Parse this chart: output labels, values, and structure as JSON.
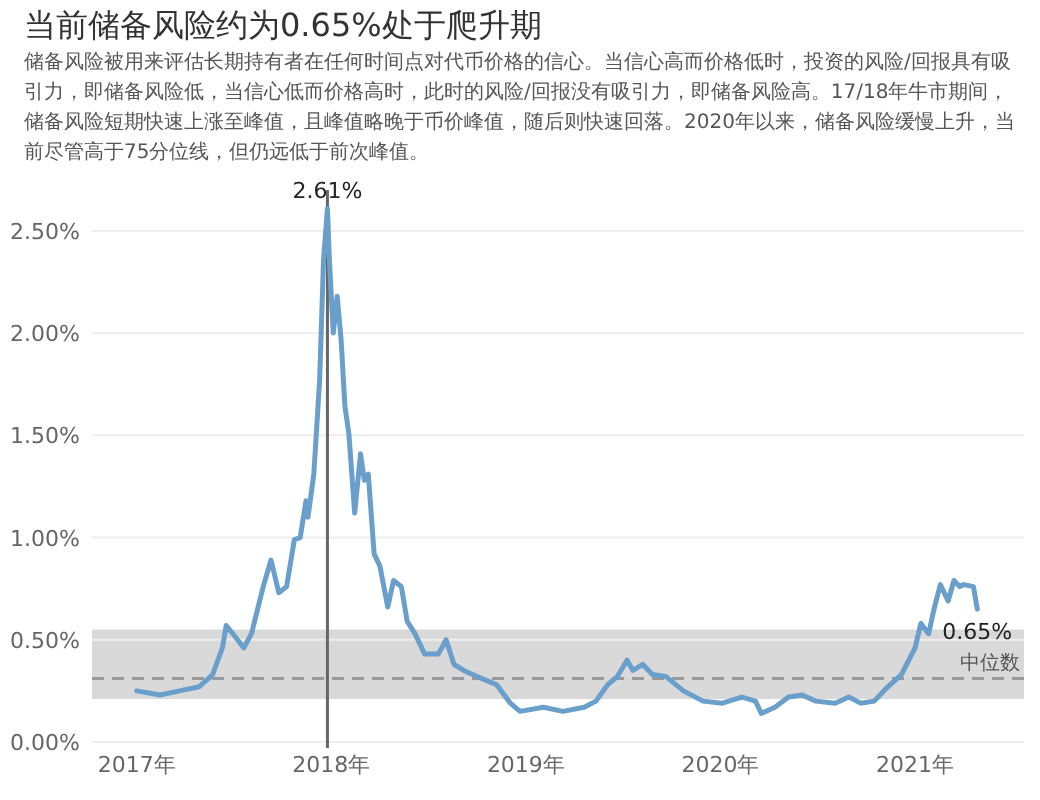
{
  "chart_data": {
    "type": "line",
    "title": "当前储备风险约为0.65%处于爬升期",
    "subtitle": "储备风险被用来评估长期持有者在任何时间点对代币价格的信心。当信心高而价格低时，投资的风险/回报具有吸引力，即储备风险低，当信心低而价格高时，此时的风险/回报没有吸引力，即储备风险高。17/18年牛市期间，储备风险短期快速上涨至峰值，且峰值略晚于币价峰值，随后则快速回落。2020年以来，储备风险缓慢上升，当前尽管高于75分位线，但仍远低于前次峰值。",
    "series": [
      {
        "color": "#6a9fcc",
        "x": [
          2017.0,
          2017.12,
          2017.22,
          2017.32,
          2017.39,
          2017.44,
          2017.46,
          2017.51,
          2017.55,
          2017.59,
          2017.65,
          2017.69,
          2017.73,
          2017.77,
          2017.81,
          2017.84,
          2017.87,
          2017.88,
          2017.91,
          2017.94,
          2017.96,
          2017.98,
          2017.99,
          2018.01,
          2018.03,
          2018.05,
          2018.07,
          2018.09,
          2018.12,
          2018.15,
          2018.17,
          2018.19,
          2018.22,
          2018.25,
          2018.29,
          2018.32,
          2018.36,
          2018.39,
          2018.43,
          2018.48,
          2018.55,
          2018.59,
          2018.63,
          2018.68,
          2018.75,
          2018.85,
          2018.92,
          2018.97,
          2019.09,
          2019.19,
          2019.3,
          2019.36,
          2019.42,
          2019.47,
          2019.52,
          2019.55,
          2019.6,
          2019.65,
          2019.72,
          2019.81,
          2019.91,
          2020.01,
          2020.11,
          2020.18,
          2020.21,
          2020.28,
          2020.35,
          2020.42,
          2020.49,
          2020.59,
          2020.66,
          2020.72,
          2020.79,
          2020.86,
          2020.93,
          2021.0,
          2021.03,
          2021.07,
          2021.1,
          2021.13,
          2021.17,
          2021.2,
          2021.23,
          2021.25,
          2021.3,
          2021.32
        ],
        "values": [
          0.25,
          0.23,
          0.25,
          0.27,
          0.33,
          0.46,
          0.57,
          0.51,
          0.46,
          0.53,
          0.76,
          0.89,
          0.73,
          0.76,
          0.99,
          1.0,
          1.18,
          1.1,
          1.31,
          1.77,
          2.36,
          2.61,
          2.36,
          2.0,
          2.18,
          1.97,
          1.64,
          1.51,
          1.12,
          1.41,
          1.28,
          1.31,
          0.92,
          0.86,
          0.66,
          0.79,
          0.76,
          0.59,
          0.53,
          0.43,
          0.43,
          0.5,
          0.38,
          0.35,
          0.32,
          0.28,
          0.19,
          0.15,
          0.17,
          0.15,
          0.17,
          0.2,
          0.28,
          0.32,
          0.4,
          0.35,
          0.38,
          0.33,
          0.32,
          0.25,
          0.2,
          0.19,
          0.22,
          0.2,
          0.14,
          0.17,
          0.22,
          0.23,
          0.2,
          0.19,
          0.22,
          0.19,
          0.2,
          0.27,
          0.33,
          0.46,
          0.58,
          0.53,
          0.66,
          0.77,
          0.69,
          0.79,
          0.76,
          0.77,
          0.76,
          0.65
        ]
      }
    ],
    "xlim": [
      2016.77,
      2021.56
    ],
    "xticks": [
      {
        "value": 2017,
        "label": "2017年"
      },
      {
        "value": 2018,
        "label": "2018年"
      },
      {
        "value": 2019,
        "label": "2019年"
      },
      {
        "value": 2020,
        "label": "2020年"
      },
      {
        "value": 2021,
        "label": "2021年"
      }
    ],
    "ylim": [
      0,
      2.7
    ],
    "yticks": [
      {
        "value": 0,
        "label": "0.00%"
      },
      {
        "value": 0.5,
        "label": "0.50%"
      },
      {
        "value": 1,
        "label": "1.00%"
      },
      {
        "value": 1.5,
        "label": "1.50%"
      },
      {
        "value": 2,
        "label": "2.00%"
      },
      {
        "value": 2.5,
        "label": "2.50%"
      }
    ],
    "grid": "y",
    "line_style": "solid",
    "bands": [
      {
        "axis": "y",
        "from": 0.21,
        "to": 0.55,
        "color": "#d9d9d9"
      }
    ],
    "ref_lines": [
      {
        "axis": "y",
        "value": 0.31,
        "label": "中位数",
        "color": "#999999",
        "line_style": "dashed"
      },
      {
        "axis": "x",
        "value": 2017.98,
        "color": "#666666",
        "line_style": "solid"
      }
    ],
    "annotations": [
      {
        "text": "2.61%",
        "x": 2017.98,
        "y": 2.61
      },
      {
        "text": "0.65%",
        "x": 2021.32,
        "y": 0.65
      }
    ]
  }
}
